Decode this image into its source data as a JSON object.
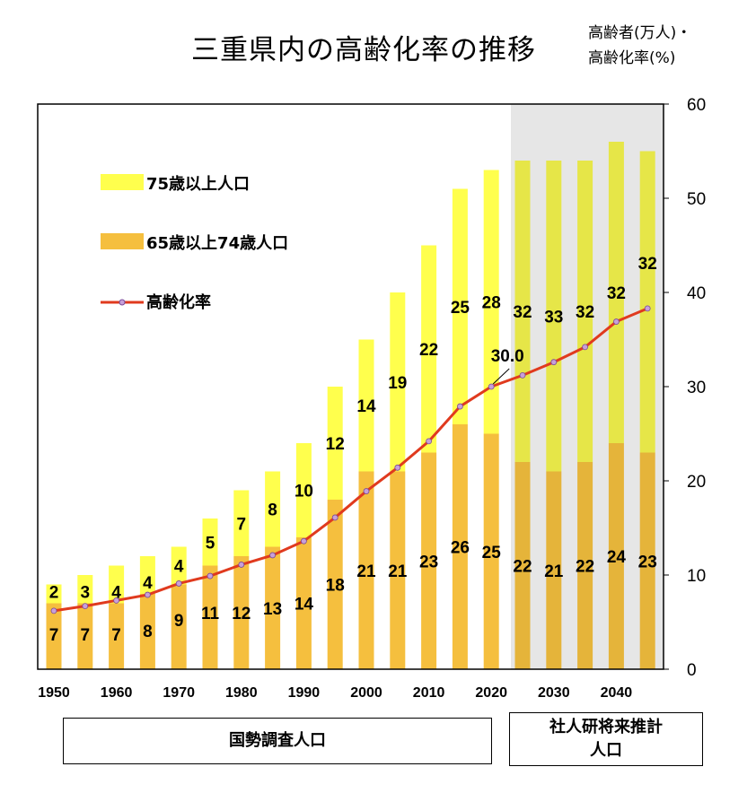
{
  "title": "三重県内の高齢化率の推移",
  "unit": {
    "line1": "高齢者(万人)・",
    "line2": "高齢化率(%)"
  },
  "legend": {
    "over75": "75歳以上人口",
    "age65to74": "65歳以上74歳人口",
    "rate": "高齢化率"
  },
  "footer": {
    "census": "国勢調査人口",
    "projection_line1": "社人研将来推計",
    "projection_line2": "人口"
  },
  "colors": {
    "age65to74": "#f5bf3e",
    "over75": "#ffff4d",
    "projection_age65to74": "#e5b43a",
    "projection_over75": "#e6e648",
    "rate_line": "#e03a1e",
    "rate_marker": "#c8a0d8",
    "projection_bg": "#e6e6e6"
  },
  "chart_data": {
    "type": "bar",
    "stacked": true,
    "x": [
      1950,
      1955,
      1960,
      1965,
      1970,
      1975,
      1980,
      1985,
      1990,
      1995,
      2000,
      2005,
      2010,
      2015,
      2020,
      2025,
      2030,
      2035,
      2040,
      2045
    ],
    "x_tick_labels": [
      "1950",
      "1960",
      "1970",
      "1980",
      "1990",
      "2000",
      "2010",
      "2020",
      "2030",
      "2040"
    ],
    "ylim": [
      0,
      60
    ],
    "y_ticks": [
      0,
      10,
      20,
      30,
      40,
      50,
      60
    ],
    "projection_start_year": 2025,
    "series": [
      {
        "name": "65歳以上74歳人口",
        "values": [
          7,
          7,
          7,
          8,
          9,
          11,
          12,
          13,
          14,
          18,
          21,
          21,
          23,
          26,
          25,
          22,
          21,
          22,
          24,
          23
        ]
      },
      {
        "name": "75歳以上人口",
        "values": [
          2,
          3,
          4,
          4,
          4,
          5,
          7,
          8,
          10,
          12,
          14,
          19,
          22,
          25,
          28,
          32,
          33,
          32,
          32,
          32
        ]
      },
      {
        "name": "高齢化率",
        "type": "line",
        "values": [
          6.2,
          6.7,
          7.3,
          7.9,
          9.1,
          9.9,
          11.1,
          12.1,
          13.6,
          16.1,
          18.9,
          21.4,
          24.2,
          27.9,
          30.0,
          31.2,
          32.6,
          34.2,
          36.9,
          38.3
        ]
      }
    ],
    "annotation": {
      "year": 2020,
      "text": "30.0"
    }
  }
}
